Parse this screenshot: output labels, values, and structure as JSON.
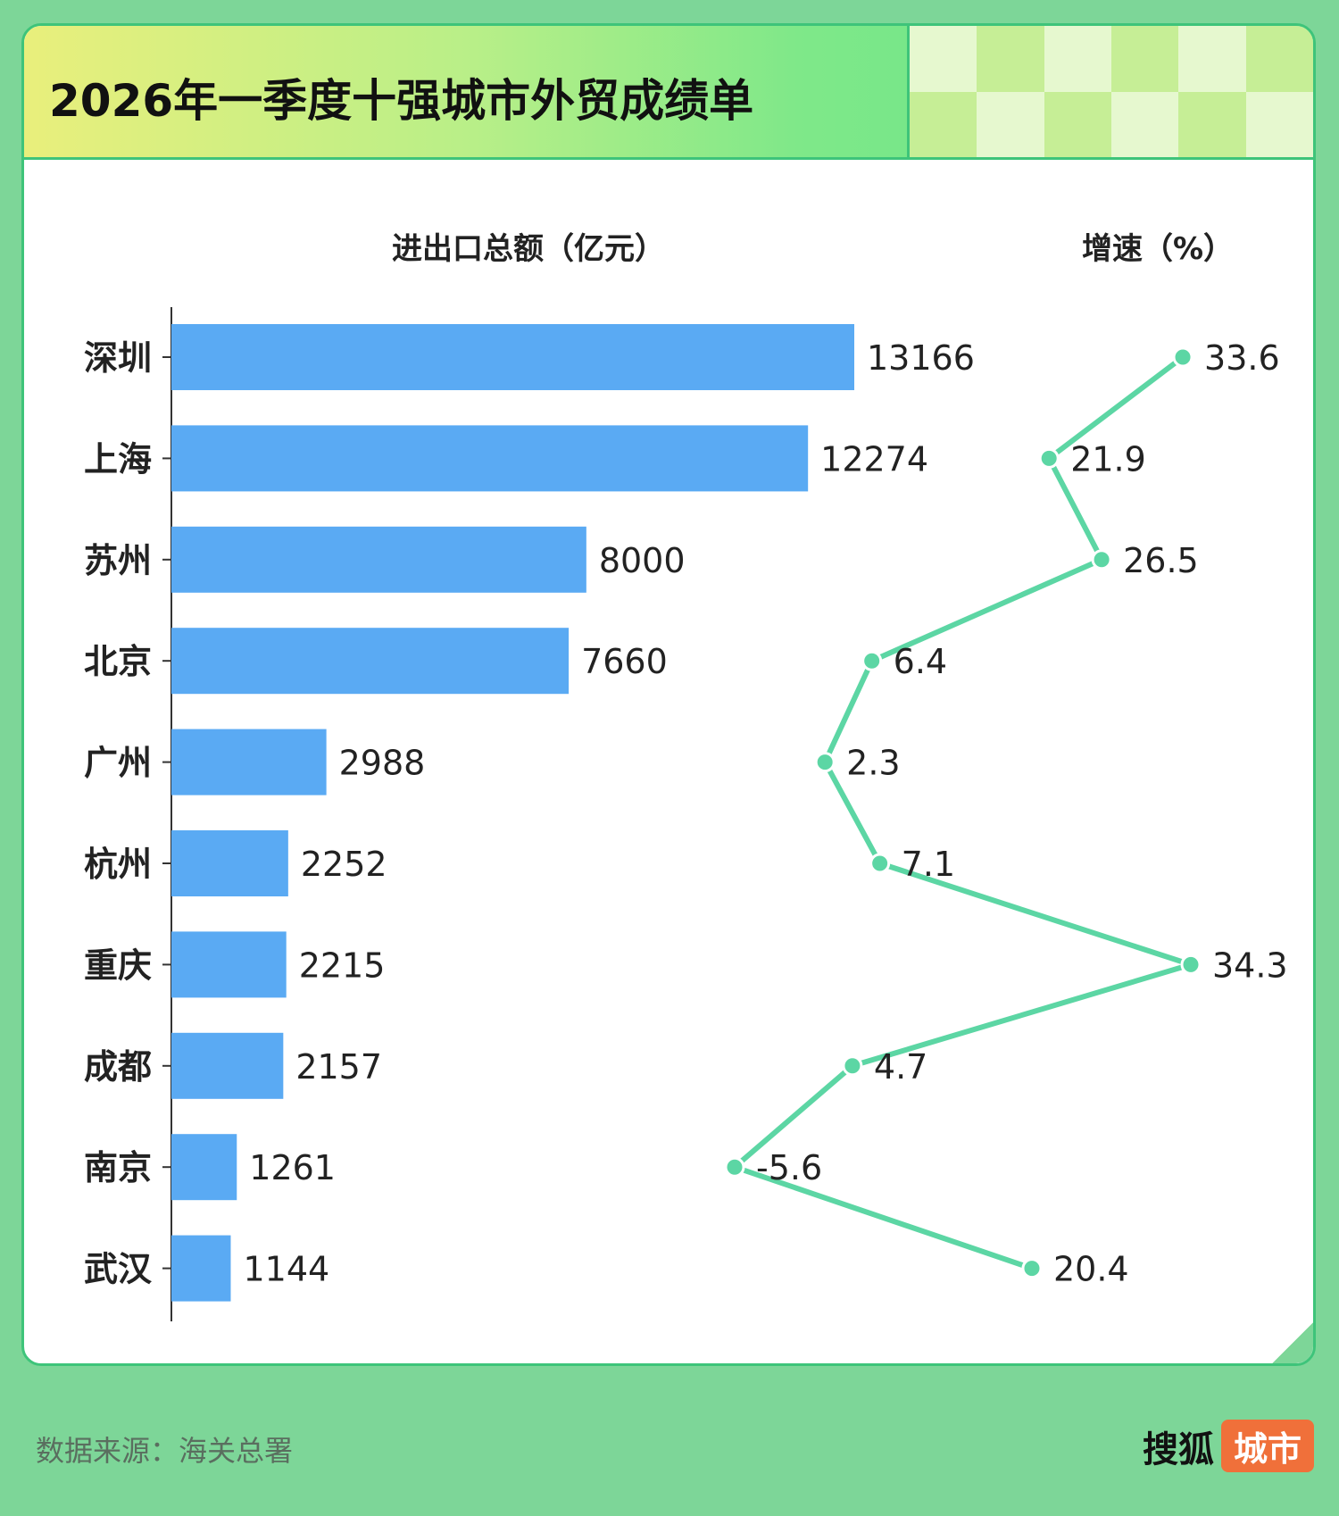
{
  "header": {
    "title": "2026年一季度十强城市外贸成绩单"
  },
  "footer": {
    "source": "数据来源：海关总署",
    "brand": "搜狐",
    "brand_tag": "城市"
  },
  "colors": {
    "bar": "#5aaaf3",
    "line": "#5cd6a4",
    "background": "#7dd698",
    "accent": "#3ec47a"
  },
  "chart_data": {
    "type": "bar",
    "title": "2026年一季度十强城市外贸成绩单",
    "categories": [
      "深圳",
      "上海",
      "苏州",
      "北京",
      "广州",
      "杭州",
      "重庆",
      "成都",
      "南京",
      "武汉"
    ],
    "series": [
      {
        "name": "进出口总额（亿元）",
        "type": "bar",
        "values": [
          13166,
          12274,
          8000,
          7660,
          2988,
          2252,
          2215,
          2157,
          1261,
          1144
        ]
      },
      {
        "name": "增速（%）",
        "type": "line",
        "values": [
          33.6,
          21.9,
          26.5,
          6.4,
          2.3,
          7.1,
          34.3,
          4.7,
          -5.6,
          20.4
        ]
      }
    ],
    "orientation": "horizontal",
    "legend": "top",
    "grid": false
  }
}
